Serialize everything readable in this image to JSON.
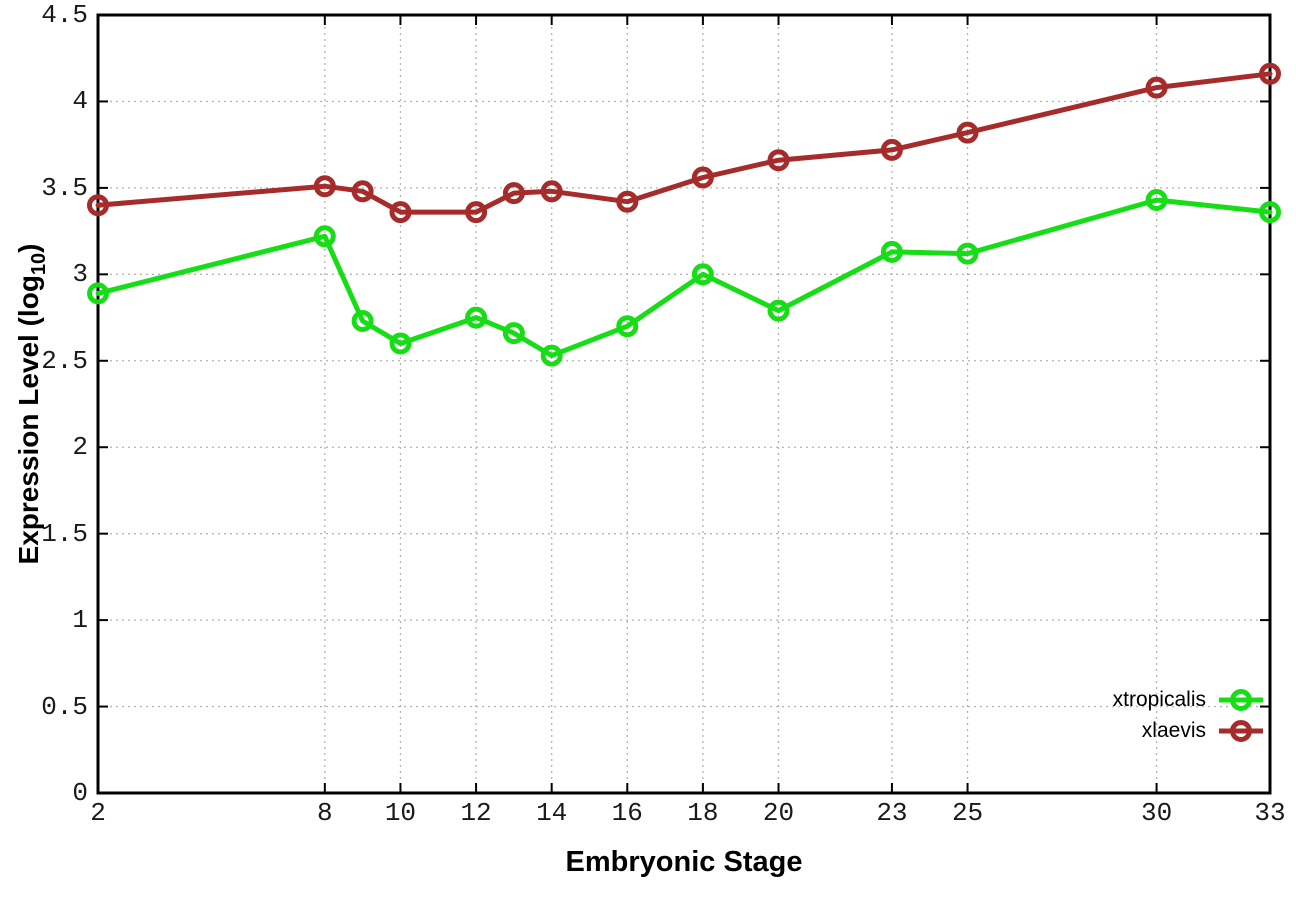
{
  "chart_data": {
    "type": "line",
    "title": "",
    "xlabel": "Embryonic Stage",
    "ylabel_pre": "Expression Level (log",
    "ylabel_sub": "10",
    "ylabel_post": ")",
    "x": [
      2,
      8,
      9,
      10,
      12,
      13,
      14,
      16,
      18,
      20,
      23,
      25,
      30,
      33
    ],
    "series": [
      {
        "name": "xtropicalis",
        "color": "#17dd17",
        "marker": "open-circle",
        "values": [
          2.89,
          3.22,
          2.73,
          2.6,
          2.75,
          2.66,
          2.53,
          2.7,
          3.0,
          2.79,
          3.13,
          3.12,
          3.43,
          3.36
        ]
      },
      {
        "name": "xlaevis",
        "color": "#a62b2b",
        "marker": "open-circle",
        "values": [
          3.4,
          3.51,
          3.48,
          3.36,
          3.36,
          3.47,
          3.48,
          3.42,
          3.56,
          3.66,
          3.72,
          3.82,
          4.08,
          4.16
        ]
      }
    ],
    "xlim": [
      2,
      33
    ],
    "ylim": [
      0,
      4.5
    ],
    "x_tick_values": [
      2,
      8,
      10,
      12,
      14,
      16,
      18,
      20,
      23,
      25,
      30,
      33
    ],
    "x_tick_labels": [
      "2",
      "8",
      "10",
      "12",
      "14",
      "16",
      "18",
      "20",
      "23",
      "25",
      "30",
      "33"
    ],
    "y_tick_values": [
      0,
      0.5,
      1,
      1.5,
      2,
      2.5,
      3,
      3.5,
      4,
      4.5
    ],
    "y_tick_labels": [
      "0",
      "0.5",
      "1",
      "1.5",
      "2",
      "2.5",
      "3",
      "3.5",
      "4",
      "4.5"
    ],
    "grid": true,
    "legend_position": "bottom-right"
  },
  "style": {
    "background": "#ffffff",
    "axis_color": "#000000",
    "grid_color": "#b3b3b3",
    "tick_text_color": "#1a1a1a"
  }
}
